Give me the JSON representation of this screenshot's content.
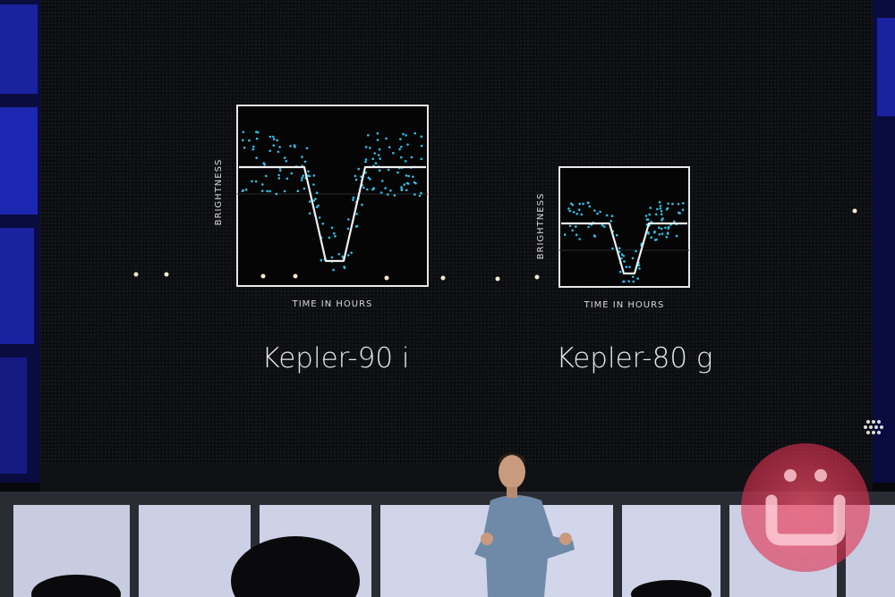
{
  "panels": [
    {
      "y_label": "BRIGHTNESS",
      "x_label": "TIME IN HOURS",
      "caption": "Kepler-90 i"
    },
    {
      "y_label": "BRIGHTNESS",
      "x_label": "TIME IN HOURS",
      "caption": "Kepler-80 g"
    }
  ]
}
